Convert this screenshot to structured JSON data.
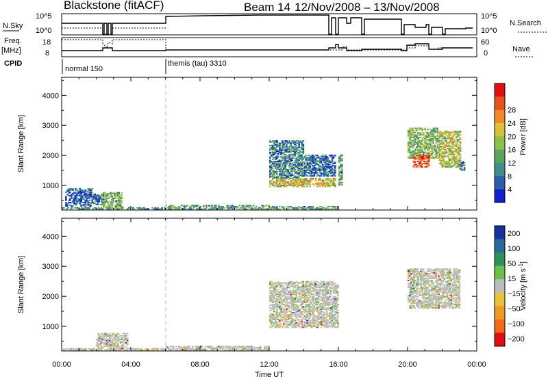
{
  "header": {
    "title": "Blackstone (fitACF)",
    "beam": "Beam 14",
    "daterange": "12/Nov/2008 – 13/Nov/2008"
  },
  "status_panels": {
    "nsky_label": "N.Sky",
    "nsky_ticks": [
      "10^5",
      "10^0"
    ],
    "nsearch_label": "N.Search",
    "nsearch_ticks": [
      "10^5",
      "10^0"
    ],
    "freq_label": "Freq.",
    "freq_unit": "[MHz]",
    "freq_ticks": [
      "18",
      "8"
    ],
    "nave_label": "Nave",
    "nave_ticks": [
      "60",
      "0"
    ],
    "cpid_label": "CPID",
    "cpid_segments": [
      "normal 150",
      "themis (tau) 3310"
    ]
  },
  "chart_data": [
    {
      "type": "heatmap",
      "title": "",
      "ylabel": "Slant Range [km]",
      "ylim": [
        180,
        4600
      ],
      "xlabel": "Time UT",
      "xticks": [
        "00:00",
        "04:00",
        "08:00",
        "12:00",
        "16:00",
        "20:00",
        "00:00"
      ],
      "yticks": [
        "1000",
        "2000",
        "3000",
        "4000"
      ],
      "colorbar": {
        "label": "Power [dB]",
        "range": [
          0,
          32
        ],
        "ticks": [
          "4",
          "8",
          "12",
          "16",
          "20",
          "24",
          "28"
        ],
        "colors": [
          "#1020d0",
          "#2c5fa8",
          "#3f8f8f",
          "#5aa55a",
          "#8cc04a",
          "#d8c23a",
          "#f08a2a",
          "#e8501e",
          "#e01010"
        ]
      },
      "regions": [
        {
          "t0": 0.0,
          "t1": 6.0,
          "r0": 200,
          "r1": 260,
          "level": 0.3
        },
        {
          "t0": 0.2,
          "t1": 1.8,
          "r0": 300,
          "r1": 900,
          "level": 0.12
        },
        {
          "t0": 1.8,
          "t1": 2.4,
          "r0": 350,
          "r1": 700,
          "level": 0.18
        },
        {
          "t0": 2.3,
          "t1": 3.5,
          "r0": 250,
          "r1": 780,
          "level": 0.4
        },
        {
          "t0": 6.0,
          "t1": 12.0,
          "r0": 200,
          "r1": 330,
          "level": 0.35
        },
        {
          "t0": 12.0,
          "t1": 16.0,
          "r0": 200,
          "r1": 300,
          "level": 0.3
        },
        {
          "t0": 12.0,
          "t1": 15.8,
          "r0": 950,
          "r1": 1250,
          "level": 0.6
        },
        {
          "t0": 12.0,
          "t1": 14.0,
          "r0": 1250,
          "r1": 2500,
          "level": 0.25
        },
        {
          "t0": 14.0,
          "t1": 15.8,
          "r0": 1300,
          "r1": 2000,
          "level": 0.15
        },
        {
          "t0": 16.0,
          "t1": 16.2,
          "r0": 1000,
          "r1": 2000,
          "level": 0.35
        },
        {
          "t0": 20.0,
          "t1": 21.8,
          "r0": 1900,
          "r1": 2900,
          "level": 0.45
        },
        {
          "t0": 20.3,
          "t1": 21.2,
          "r0": 1600,
          "r1": 2000,
          "level": 0.9
        },
        {
          "t0": 21.8,
          "t1": 23.0,
          "r0": 1600,
          "r1": 2800,
          "level": 0.55
        },
        {
          "t0": 23.0,
          "t1": 23.3,
          "r0": 1500,
          "r1": 1800,
          "level": 0.2
        }
      ]
    },
    {
      "type": "heatmap",
      "title": "",
      "ylabel": "Slant Range [km]",
      "ylim": [
        180,
        4600
      ],
      "xlabel": "Time UT",
      "xticks": [
        "00:00",
        "04:00",
        "08:00",
        "12:00",
        "16:00",
        "20:00",
        "00:00"
      ],
      "yticks": [
        "1000",
        "2000",
        "3000",
        "4000"
      ],
      "colorbar": {
        "label": "Velocity [m s",
        "label_superscript": "-1",
        "label_tail": "]",
        "range": [
          -250,
          250
        ],
        "ticks": [
          "200",
          "100",
          "50",
          "15",
          "−15",
          "−50",
          "−100",
          "−200"
        ],
        "colors": [
          "#1a2fa0",
          "#2a6a9a",
          "#2f8f5a",
          "#6cc04a",
          "#bcbcbc",
          "#e8c23a",
          "#f09a2a",
          "#f06a1e",
          "#e01010"
        ]
      },
      "regions": [
        {
          "t0": 0.0,
          "t1": 6.0,
          "r0": 200,
          "r1": 260,
          "level": 0.45
        },
        {
          "t0": 2.0,
          "t1": 3.8,
          "r0": 250,
          "r1": 780,
          "level": 0.5
        },
        {
          "t0": 6.0,
          "t1": 12.0,
          "r0": 200,
          "r1": 320,
          "level": 0.6
        },
        {
          "t0": 12.0,
          "t1": 16.0,
          "r0": 950,
          "r1": 2500,
          "level": 0.5
        },
        {
          "t0": 20.0,
          "t1": 23.0,
          "r0": 1600,
          "r1": 2900,
          "level": 0.5
        }
      ]
    }
  ]
}
